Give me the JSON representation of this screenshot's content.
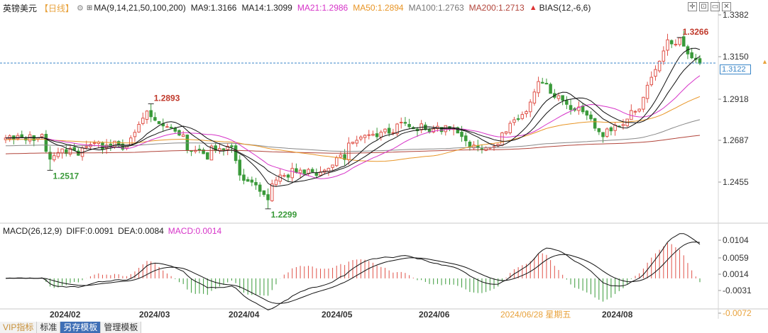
{
  "header": {
    "product": "英镑美元",
    "period": "【日线】",
    "gear_icon": "gear-icon",
    "ma_params": "MA(9,14,21,50,100,200)",
    "ma9": "MA9:1.3166",
    "ma14": "MA14:1.3099",
    "ma21": "MA21:1.2986",
    "ma50": "MA50:1.2894",
    "ma100": "MA100:1.2763",
    "ma200": "MA200:1.2713",
    "bias": "BIAS(12,-6,6)"
  },
  "toolbar_icons": [
    "expand-icon",
    "fullscreen-icon",
    "restore-icon",
    "close-icon"
  ],
  "sub_header": {
    "macd": "MACD(26,12,9)",
    "diff": "DIFF:0.0091",
    "dea": "DEA:0.0084",
    "macd_value": "MACD:0.0014"
  },
  "current_price_tag": "1.3122",
  "bottom_tabs": [
    "VIP指标",
    "标准",
    "另存模板",
    "管理模板"
  ],
  "colors": {
    "up": "#e0534a",
    "down": "#3a9a3a",
    "ma9": "#111111",
    "ma14": "#111111",
    "ma21": "#d633c8",
    "ma50": "#e89526",
    "ma100": "#888888",
    "ma200": "#b2453b",
    "price_line": "#3a86c8"
  },
  "chart_data": [
    {
      "type": "candlestick",
      "title": "英镑美元 日线",
      "y_ticks": [
        "1.3382",
        "1.3150",
        "1.2918",
        "1.2687",
        "1.2455"
      ],
      "ylim": [
        1.223,
        1.34
      ],
      "x_ticks": [
        "2024/02",
        "2024/03",
        "2024/04",
        "2024/05",
        "2024/06",
        "2024/06/28 星期五",
        "2024/08"
      ],
      "annotations": [
        {
          "label": "1.2893",
          "kind": "high"
        },
        {
          "label": "1.2517",
          "kind": "low"
        },
        {
          "label": "1.2299",
          "kind": "low"
        },
        {
          "label": "1.3266",
          "kind": "high"
        }
      ],
      "closes": [
        1.27,
        1.2712,
        1.2694,
        1.2714,
        1.2702,
        1.2688,
        1.2718,
        1.2686,
        1.27,
        1.272,
        1.2624,
        1.258,
        1.26,
        1.2618,
        1.2638,
        1.2612,
        1.2642,
        1.263,
        1.2602,
        1.2644,
        1.2651,
        1.2663,
        1.2672,
        1.2677,
        1.2637,
        1.266,
        1.2649,
        1.2682,
        1.2663,
        1.2636,
        1.2656,
        1.27,
        1.2732,
        1.2777,
        1.2812,
        1.2852,
        1.282,
        1.28,
        1.278,
        1.2768,
        1.2764,
        1.2758,
        1.2738,
        1.2716,
        1.2718,
        1.263,
        1.2624,
        1.263,
        1.2636,
        1.2611,
        1.258,
        1.2654,
        1.2628,
        1.264,
        1.2632,
        1.2653,
        1.265,
        1.2572,
        1.249,
        1.246,
        1.2455,
        1.245,
        1.2434,
        1.2398,
        1.238,
        1.235,
        1.244,
        1.2462,
        1.249,
        1.2488,
        1.2478,
        1.2528,
        1.2505,
        1.2518,
        1.2498,
        1.2522,
        1.2508,
        1.2488,
        1.2508,
        1.2518,
        1.2528,
        1.2547,
        1.2588,
        1.2604,
        1.2578,
        1.2671,
        1.2676,
        1.2687,
        1.2705,
        1.2715,
        1.2718,
        1.2721,
        1.2707,
        1.2733,
        1.275,
        1.2727,
        1.273,
        1.2779,
        1.2789,
        1.2783,
        1.2763,
        1.2752,
        1.2741,
        1.278,
        1.2747,
        1.2733,
        1.2751,
        1.2766,
        1.2736,
        1.277,
        1.2749,
        1.2753,
        1.2728,
        1.2708,
        1.2684,
        1.265,
        1.266,
        1.2645,
        1.2637,
        1.2644,
        1.2646,
        1.2651,
        1.2665,
        1.2729,
        1.2735,
        1.2783,
        1.2803,
        1.2806,
        1.2833,
        1.2849,
        1.2903,
        1.296,
        1.3019,
        1.301,
        1.3005,
        1.2952,
        1.293,
        1.2939,
        1.2913,
        1.289,
        1.286,
        1.2857,
        1.2875,
        1.2848,
        1.2829,
        1.2808,
        1.2755,
        1.2735,
        1.2707,
        1.2751,
        1.274,
        1.2773,
        1.2766,
        1.2776,
        1.2807,
        1.2855,
        1.285,
        1.2863,
        1.293,
        1.2998,
        1.3043,
        1.3087,
        1.3134,
        1.3192,
        1.3255,
        1.3232,
        1.323,
        1.3266,
        1.3219,
        1.3175,
        1.3153,
        1.3144,
        1.3122
      ]
    },
    {
      "type": "line",
      "title": "MACD(26,12,9)",
      "y_ticks": [
        "0.0104",
        "0.0059",
        "0.0014",
        "-0.0031",
        "-0.0072"
      ],
      "ylim": [
        -0.0076,
        0.011
      ],
      "series": [
        {
          "name": "DIFF",
          "color": "#111111"
        },
        {
          "name": "DEA",
          "color": "#111111"
        },
        {
          "name": "MACD",
          "color": "#d633c8"
        }
      ]
    }
  ]
}
